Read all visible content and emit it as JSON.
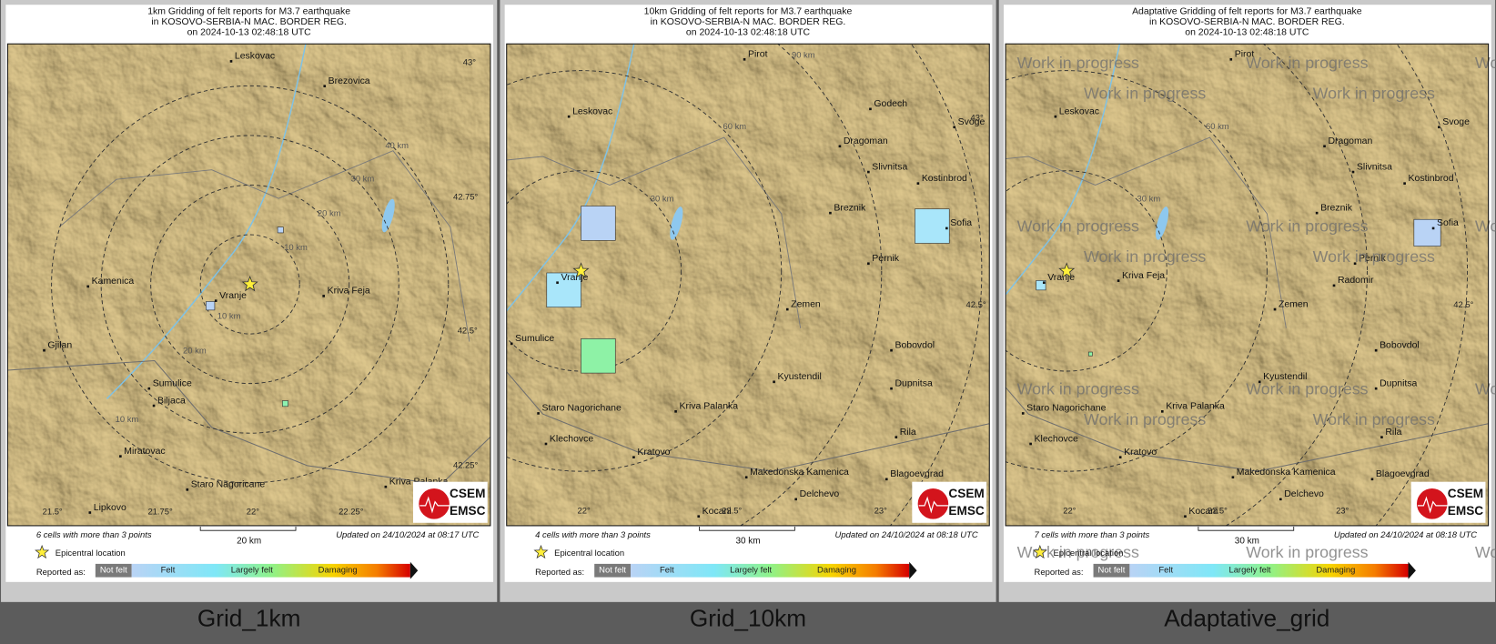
{
  "panels": [
    {
      "title": [
        "1km Gridding of felt reports for M3.7 earthquake",
        "in KOSOVO-SERBIA-N MAC. BORDER REG.",
        "on  2024-10-13 02:48:18 UTC"
      ],
      "caption": "Grid_1km",
      "places": [
        "Leskovac",
        "Brezovica",
        "Kamenica",
        "Vranje",
        "Kriva Feja",
        "Gjilan",
        "Sumulice",
        "Biljaca",
        "Miratovac",
        "Staro Nagoricane",
        "Kriva Palanka",
        "Lipkovo"
      ],
      "ring_labels": [
        "40 km",
        "30 km",
        "20 km",
        "10 km",
        "10 km",
        "20 km",
        "10 km"
      ],
      "coord_labels": [
        "43°",
        "42.75°",
        "42.5°",
        "42.25°",
        "21.5°",
        "21.75°",
        "22°",
        "22.25°"
      ],
      "cells_note": "6 cells with more than 3 points",
      "scale_label": "20 km",
      "updated": "Updated on 24/10/2024 at 08:17 UTC"
    },
    {
      "title": [
        "10km Gridding of felt reports for M3.7 earthquake",
        "in KOSOVO-SERBIA-N MAC. BORDER REG.",
        "on  2024-10-13 02:48:18 UTC"
      ],
      "caption": "Grid_10km",
      "places": [
        "Pirot",
        "Leskovac",
        "Godech",
        "Svoge",
        "Dragoman",
        "Slivnitsa",
        "Kostinbrod",
        "Breznik",
        "Sofia",
        "Pernik",
        "Vranje",
        "Zemen",
        "Sumulice",
        "Bobovdol",
        "Kyustendil",
        "Dupnitsa",
        "Staro Nagorichane",
        "Kriva Palanka",
        "Klechovce",
        "Rila",
        "Kratovo",
        "Makedonska Kamenica",
        "Blagoevgrad",
        "Delchevo",
        "Kocani"
      ],
      "ring_labels": [
        "90 km",
        "60 km",
        "30 km"
      ],
      "coord_labels": [
        "43°",
        "42.5°",
        "22°",
        "22.5°",
        "23°"
      ],
      "cells_note": "4 cells with more than 3 points",
      "scale_label": "30 km",
      "updated": "Updated on 24/10/2024 at 08:18 UTC"
    },
    {
      "title": [
        "Adaptative Gridding of felt reports for M3.7 earthquake",
        "in KOSOVO-SERBIA-N MAC. BORDER REG.",
        "on  2024-10-13 02:48:18 UTC"
      ],
      "caption": "Adaptative_grid",
      "places": [
        "Pirot",
        "Leskovac",
        "Svoge",
        "Dragoman",
        "Slivnitsa",
        "Kostinbrod",
        "Breznik",
        "Sofia",
        "Vranje",
        "Kriva Feja",
        "Pernik",
        "Radomir",
        "Zemen",
        "Bobovdol",
        "Kyustendil",
        "Dupnitsa",
        "Staro Nagorichane",
        "Kriva Palanka",
        "Klechovce",
        "Rila",
        "Kratovo",
        "Makedonska Kamenica",
        "Blagoevgrad",
        "Delchevo",
        "Kocani"
      ],
      "ring_labels": [
        "60 km",
        "30 km"
      ],
      "coord_labels": [
        "42.5°",
        "22°",
        "22.5°",
        "23°"
      ],
      "cells_note": "7 cells with more than 3 points",
      "scale_label": "30 km",
      "updated": "Updated on 24/10/2024 at 08:18 UTC"
    }
  ],
  "legend": {
    "epicenter": "Epicentral location",
    "reported_as": "Reported as:",
    "classes": [
      "Not felt",
      "Felt",
      "Largely felt",
      "Damaging"
    ]
  },
  "logo": [
    "CSEM",
    "EMSC"
  ],
  "watermark": "Work in progress"
}
